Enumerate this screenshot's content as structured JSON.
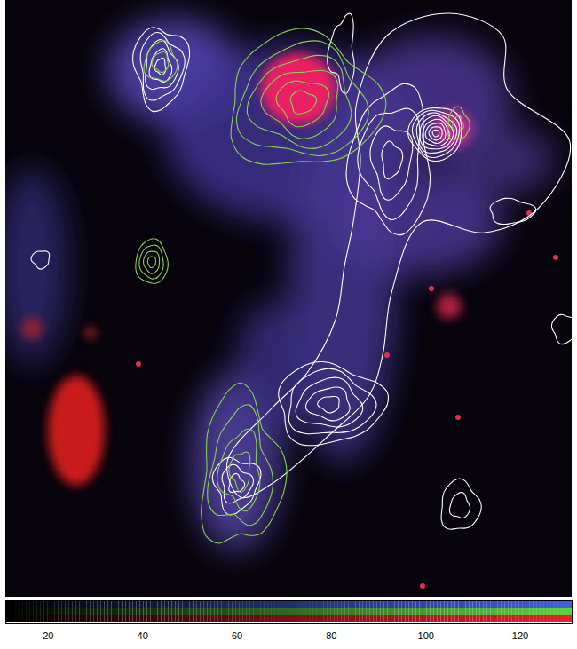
{
  "chart_data": {
    "type": "image",
    "colorbar": {
      "range": [
        11,
        131
      ],
      "ticks": [
        20,
        40,
        60,
        80,
        100,
        120
      ],
      "colors": [
        "#3f5fe0",
        "#5fd040",
        "#e8202a"
      ]
    }
  }
}
